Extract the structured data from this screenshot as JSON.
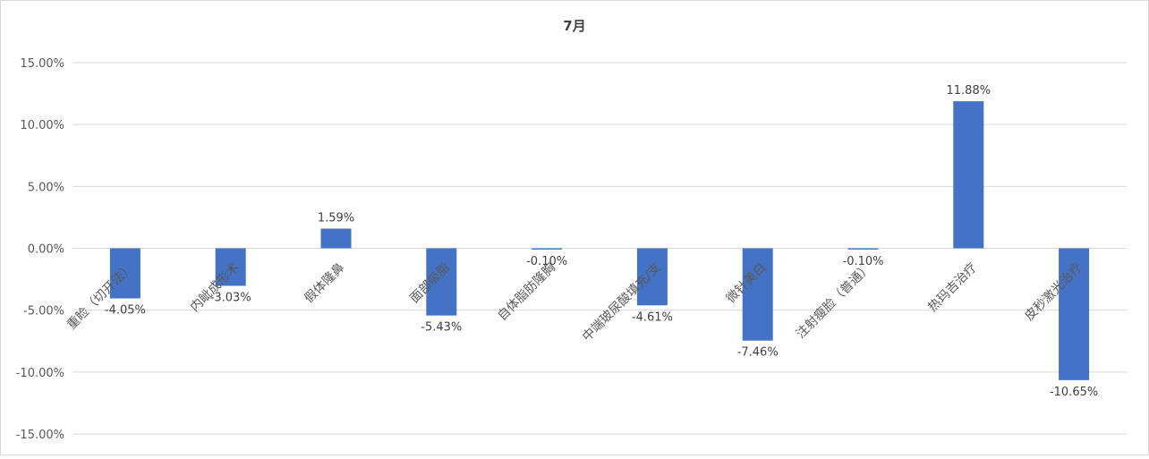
{
  "chart_data": {
    "type": "bar",
    "title": "7月",
    "categories": [
      "重睑（切开法）",
      "内眦成形术",
      "假体隆鼻",
      "面部吸脂",
      "自体脂肪隆胸",
      "中端玻尿酸填充/支",
      "微针美白",
      "注射瘦脸（普通）",
      "热玛吉治疗",
      "皮秒激光治疗"
    ],
    "values": [
      -4.05,
      -3.03,
      1.59,
      -5.43,
      -0.1,
      -4.61,
      -7.46,
      -0.1,
      11.88,
      -10.65
    ],
    "data_labels": [
      "-4.05%",
      "-3.03%",
      "1.59%",
      "-5.43%",
      "-0.10%",
      "-4.61%",
      "-7.46%",
      "-0.10%",
      "11.88%",
      "-10.65%"
    ],
    "y_ticks": [
      "15.00%",
      "10.00%",
      "5.00%",
      "0.00%",
      "-5.00%",
      "-10.00%",
      "-15.00%"
    ],
    "ylim": [
      -15,
      15
    ],
    "xlabel": "",
    "ylabel": "",
    "grid": true,
    "legend": "none",
    "bar_color": "#4472c4"
  }
}
